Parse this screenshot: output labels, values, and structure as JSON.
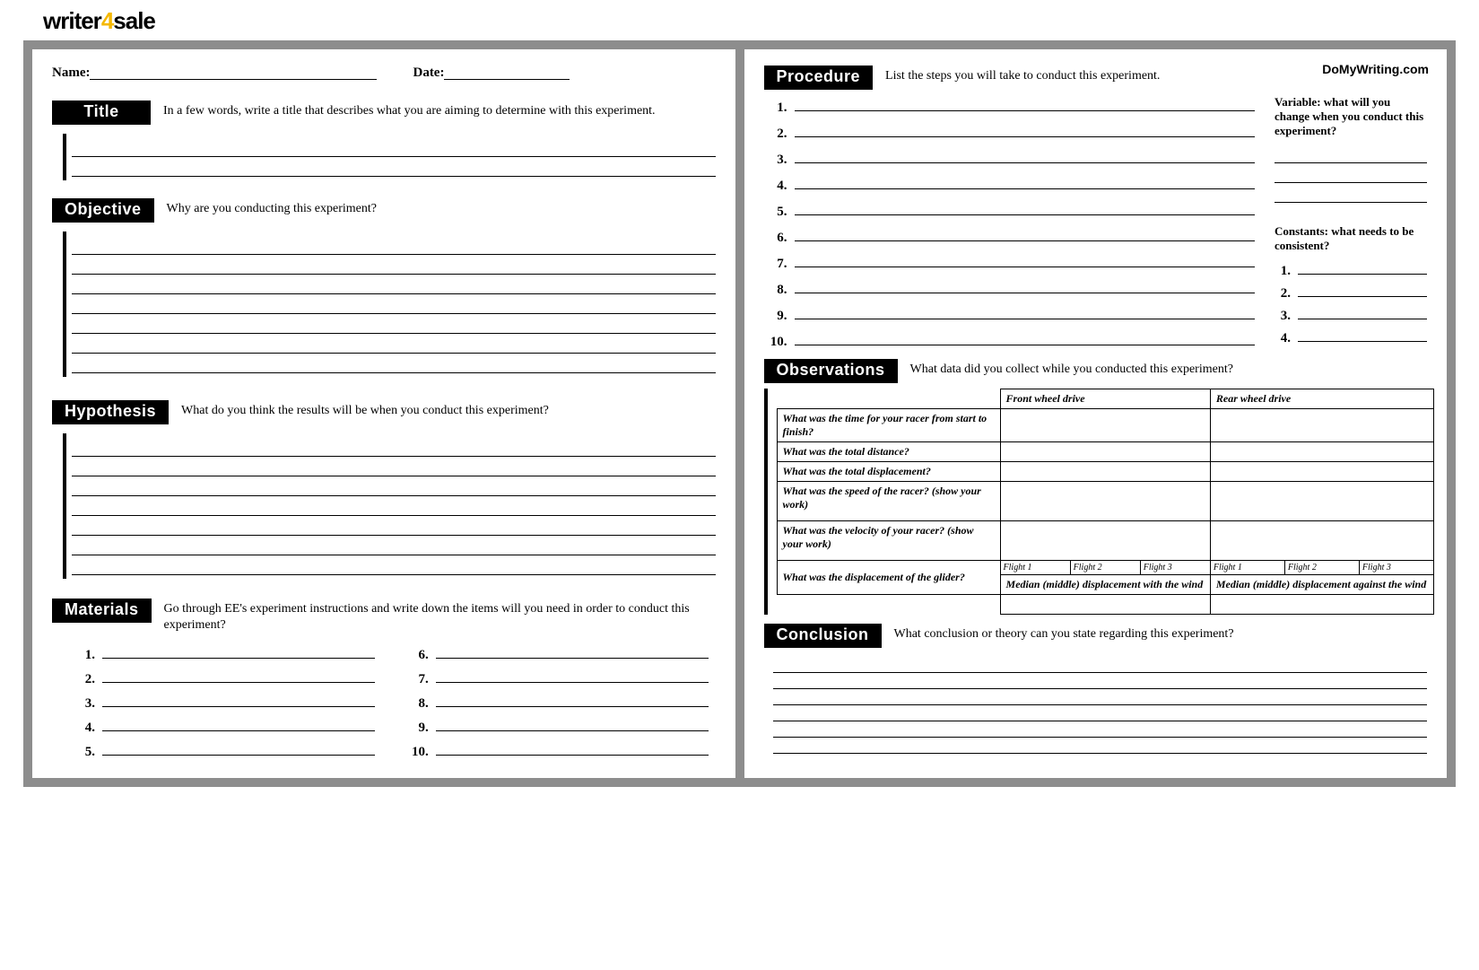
{
  "logo": {
    "part1": "writer",
    "part2": "4",
    "part3": "sale"
  },
  "watermark": "DoMyWriting.com",
  "left": {
    "name_label": "Name:",
    "date_label": "Date:",
    "title": {
      "label": "Title",
      "prompt": "In a few words, write a title that describes what you are aiming to determine with this experiment.",
      "lines": 2
    },
    "objective": {
      "label": "Objective",
      "prompt": "Why are you conducting this experiment?",
      "lines": 7
    },
    "hypothesis": {
      "label": "Hypothesis",
      "prompt": "What do you think the results will be when you conduct this experiment?",
      "lines": 7
    },
    "materials": {
      "label": "Materials",
      "prompt": "Go through EE's experiment instructions and write down the items will you need in order to conduct this experiment?",
      "count": 10
    }
  },
  "right": {
    "procedure": {
      "label": "Procedure",
      "prompt": "List the steps you will take to conduct this experiment.",
      "count": 10
    },
    "variable": {
      "heading": "Variable: what will you change when you conduct this experiment?",
      "lines": 3
    },
    "constants": {
      "heading": "Constants: what needs to be consistent?",
      "count": 4
    },
    "observations": {
      "label": "Observations",
      "prompt": "What data did you collect while you conducted this experiment?",
      "col_front": "Front wheel drive",
      "col_rear": "Rear wheel drive",
      "q_time": "What was the time for your racer from start to finish?",
      "q_distance": "What was the total distance?",
      "q_displacement": "What was the total displacement?",
      "q_speed": "What was the speed of the racer? (show your work)",
      "q_velocity": "What was the velocity of your racer? (show your work)",
      "q_glider": "What was the displacement of the glider?",
      "flight1": "Flight 1",
      "flight2": "Flight 2",
      "flight3": "Flight 3",
      "median_with": "Median (middle) displacement with the wind",
      "median_against": "Median (middle) displacement against the wind"
    },
    "conclusion": {
      "label": "Conclusion",
      "prompt": "What conclusion or theory can you state regarding this experiment?",
      "lines": 6
    }
  },
  "colors": {
    "frame": "#8d8d8d",
    "accent": "#f5b800",
    "text": "#000000",
    "bg": "#ffffff"
  }
}
